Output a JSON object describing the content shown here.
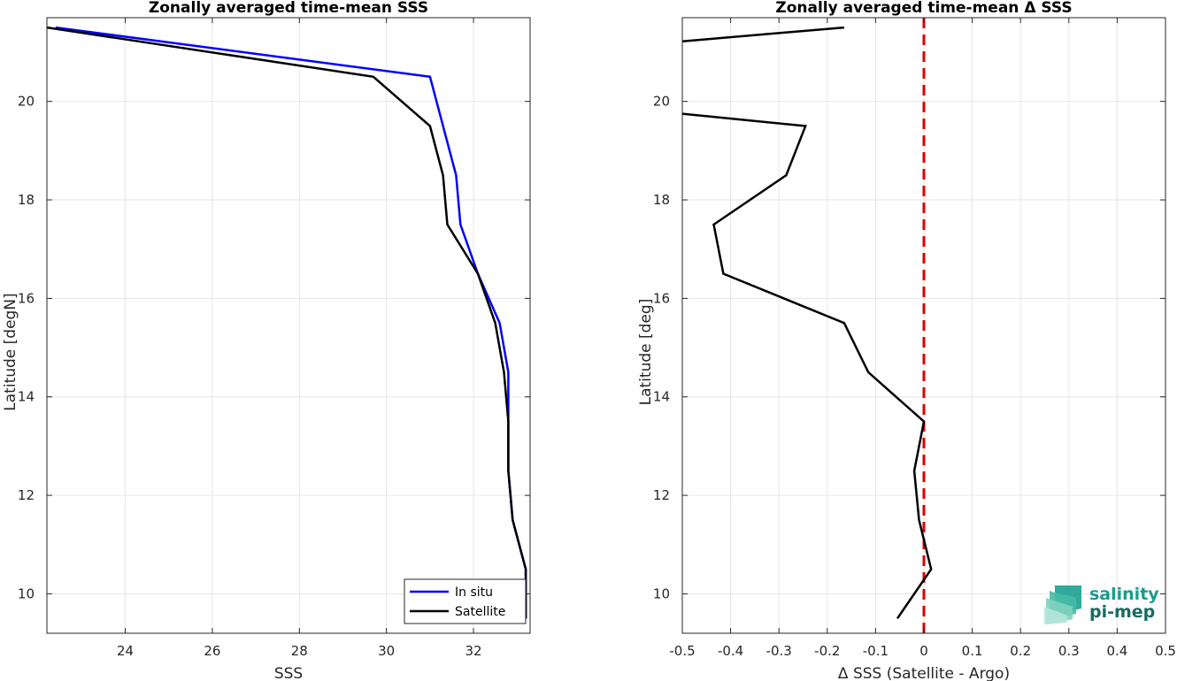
{
  "chart_data": [
    {
      "type": "line",
      "title": "Zonally averaged time-mean SSS",
      "xlabel": "SSS",
      "ylabel": "Latitude [degN]",
      "xlim": [
        22.2,
        33.3
      ],
      "ylim": [
        9.2,
        21.7
      ],
      "xticks": [
        24,
        26,
        28,
        30,
        32
      ],
      "yticks": [
        10,
        12,
        14,
        16,
        18,
        20
      ],
      "grid": true,
      "legend_position": "bottom-right",
      "series": [
        {
          "name": "In situ",
          "color": "#0000ff",
          "x": [
            22.4,
            31.0,
            31.6,
            31.7,
            32.1,
            32.6,
            32.8,
            32.8,
            32.8,
            32.9,
            33.2,
            33.2
          ],
          "y": [
            21.5,
            20.5,
            18.5,
            17.5,
            16.5,
            15.5,
            14.5,
            13.5,
            12.5,
            11.5,
            10.5,
            9.5
          ]
        },
        {
          "name": "Satellite",
          "color": "#000000",
          "x": [
            22.2,
            29.7,
            31.0,
            31.3,
            31.4,
            32.1,
            32.5,
            32.7,
            32.8,
            32.8,
            32.9,
            33.2,
            33.2
          ],
          "y": [
            21.5,
            20.5,
            19.5,
            18.5,
            17.5,
            16.5,
            15.5,
            14.5,
            13.5,
            12.5,
            11.5,
            10.5,
            9.5
          ]
        }
      ]
    },
    {
      "type": "line",
      "title": "Zonally averaged time-mean Δ SSS",
      "xlabel": "Δ SSS (Satellite - Argo)",
      "ylabel": "Latitude [deg]",
      "xlim": [
        -0.5,
        0.5
      ],
      "ylim": [
        9.2,
        21.7
      ],
      "xticks": [
        -0.5,
        -0.4,
        -0.3,
        -0.2,
        -0.1,
        0,
        0.1,
        0.2,
        0.3,
        0.4,
        0.5
      ],
      "xtick_labels": [
        "-0.5",
        "-0.4",
        "-0.3",
        "-0.2",
        "-0.1",
        "0",
        "0.1",
        "0.2",
        "0.3",
        "0.4",
        "0.5"
      ],
      "yticks": [
        10,
        12,
        14,
        16,
        18,
        20
      ],
      "grid": true,
      "reference_line": {
        "x": 0,
        "color": "#dd0000",
        "style": "dashed"
      },
      "series": [
        {
          "color": "#000000",
          "segments": [
            {
              "x": [
                -0.5,
                -0.165
              ],
              "y": [
                21.22,
                21.5
              ]
            },
            {
              "x": [
                -0.5,
                -0.245,
                -0.285,
                -0.435,
                -0.415,
                -0.165,
                -0.115,
                0.0,
                -0.02,
                -0.01,
                0.015,
                -0.055
              ],
              "y": [
                19.75,
                19.5,
                18.5,
                17.5,
                16.5,
                15.5,
                14.5,
                13.5,
                12.5,
                11.5,
                10.5,
                9.5
              ]
            }
          ]
        }
      ]
    }
  ],
  "logo": {
    "line1": "salinity",
    "line2": "pi-mep"
  }
}
